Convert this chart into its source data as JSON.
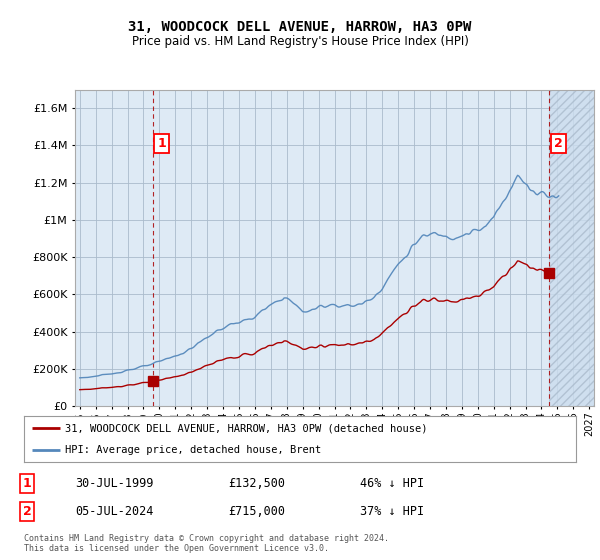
{
  "title": "31, WOODCOCK DELL AVENUE, HARROW, HA3 0PW",
  "subtitle": "Price paid vs. HM Land Registry's House Price Index (HPI)",
  "legend_line1": "31, WOODCOCK DELL AVENUE, HARROW, HA3 0PW (detached house)",
  "legend_line2": "HPI: Average price, detached house, Brent",
  "point1_date": "30-JUL-1999",
  "point1_price": "£132,500",
  "point1_hpi": "46% ↓ HPI",
  "point2_date": "05-JUL-2024",
  "point2_price": "£715,000",
  "point2_hpi": "37% ↓ HPI",
  "footer": "Contains HM Land Registry data © Crown copyright and database right 2024.\nThis data is licensed under the Open Government Licence v3.0.",
  "red_color": "#aa0000",
  "blue_color": "#5588bb",
  "plot_bg": "#deeaf5",
  "hatch_bg": "#ccddee",
  "background_color": "#ffffff",
  "grid_color": "#aabbcc",
  "ylim": [
    0,
    1700000
  ],
  "xlim_start": 1994.7,
  "xlim_end": 2027.3,
  "point1_x": 1999.58,
  "point2_x": 2024.5
}
